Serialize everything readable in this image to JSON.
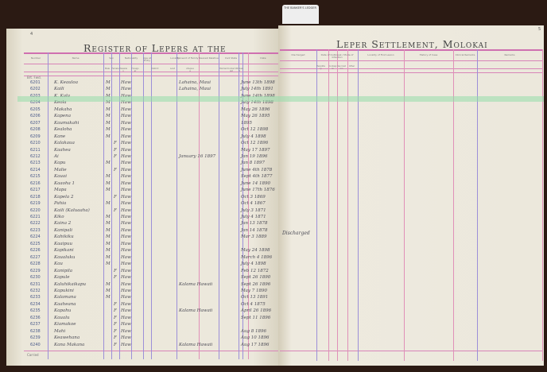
{
  "tag_label": "THE BANKER'S LEDGER",
  "left_page": {
    "page_number": "4",
    "title": "Register of Lepers at the",
    "headers": [
      "Number",
      "Name",
      "Sex",
      "Nationality",
      "Age at Entry",
      "Locality",
      "Consent of Family",
      "Nearest Relative",
      "Civil State",
      "Date"
    ],
    "sub_headers": [
      "Male",
      "Female",
      "Hawaiian",
      "Foreigner",
      "District",
      "Land",
      "Ahupuaa",
      "Married",
      "Unmarried",
      "Widowed"
    ],
    "brought_forward": "Brt. Fwd.",
    "carried_forward": "Carried"
  },
  "right_page": {
    "page_number": "5",
    "title": "Leper Settlement, Molokai",
    "headers": [
      "Discharged",
      "Date of Outbreak / Mode of Infection",
      "Locality of First Lesion",
      "History of Case",
      "Clinical Remarks",
      "Remarks"
    ],
    "sub_headers": [
      "Hereditary",
      "Contagion",
      "Vaccination",
      "Other"
    ],
    "annotation": "Discharged"
  },
  "rows": [
    {
      "num": "6201",
      "name": "K. Keauloa",
      "sex": "M",
      "nat": "Haw",
      "locality": "Lahaina, Maui",
      "date": "June 13th 1898"
    },
    {
      "num": "6202",
      "name": "Kaili",
      "sex": "M",
      "nat": "Haw",
      "locality": "Lahaina, Maui",
      "date": "July 14th 1891"
    },
    {
      "num": "6203",
      "name": "K. Kala",
      "sex": "M",
      "nat": "Haw",
      "locality": "",
      "date": "June 14th 1898"
    },
    {
      "num": "6204",
      "name": "Keola",
      "sex": "M",
      "nat": "Haw",
      "locality": "",
      "date": "July 14th 1898"
    },
    {
      "num": "6205",
      "name": "Makaha",
      "sex": "M",
      "nat": "Haw",
      "locality": "",
      "date": "May 26 1896"
    },
    {
      "num": "6206",
      "name": "Kapena",
      "sex": "M",
      "nat": "Haw",
      "locality": "",
      "date": "May 26 1895"
    },
    {
      "num": "6207",
      "name": "Kaumakahi",
      "sex": "M",
      "nat": "Haw",
      "locality": "",
      "date": "1895"
    },
    {
      "num": "6208",
      "name": "Kealoha",
      "sex": "M",
      "nat": "Haw",
      "locality": "",
      "date": "Oct 12 1898"
    },
    {
      "num": "6209",
      "name": "Kane",
      "sex": "M",
      "nat": "Haw",
      "locality": "",
      "date": "July 4 1898"
    },
    {
      "num": "6210",
      "name": "Kalakaua",
      "sex": "F",
      "nat": "Haw",
      "locality": "",
      "date": "Oct 12 1896"
    },
    {
      "num": "6211",
      "name": "Kaahea",
      "sex": "F",
      "nat": "Haw",
      "locality": "",
      "date": "May 17 1897"
    },
    {
      "num": "6212",
      "name": "Ai",
      "sex": "F",
      "nat": "Haw",
      "locality": "January 16 1897",
      "date": "Jan 19 1896"
    },
    {
      "num": "6213",
      "name": "Kapu",
      "sex": "M",
      "nat": "Haw",
      "locality": "",
      "date": "Jan 8 1897"
    },
    {
      "num": "6214",
      "name": "Malie",
      "sex": "F",
      "nat": "Haw",
      "locality": "",
      "date": "June 4th 1878"
    },
    {
      "num": "6215",
      "name": "Kauai",
      "sex": "M",
      "nat": "Haw",
      "locality": "",
      "date": "Sept 4th 1877"
    },
    {
      "num": "6216",
      "name": "Kaaoha 1",
      "sex": "M",
      "nat": "Haw",
      "locality": "",
      "date": "June 14 1890"
    },
    {
      "num": "6217",
      "name": "Mapa",
      "sex": "M",
      "nat": "Haw",
      "locality": "",
      "date": "June 17th 1876"
    },
    {
      "num": "6218",
      "name": "Kapela 2",
      "sex": "F",
      "nat": "Haw",
      "locality": "",
      "date": "Oct 3 1869"
    },
    {
      "num": "6219",
      "name": "Pahia",
      "sex": "M",
      "nat": "Haw",
      "locality": "",
      "date": "Oct 4 1867"
    },
    {
      "num": "6220",
      "name": "Kaili (Kaluaaha)",
      "sex": "F",
      "nat": "Haw",
      "locality": "",
      "date": "July 3 1871"
    },
    {
      "num": "6221",
      "name": "Kiko",
      "sex": "M",
      "nat": "Haw",
      "locality": "",
      "date": "July 4 1871"
    },
    {
      "num": "6222",
      "name": "Kaina 2",
      "sex": "M",
      "nat": "Haw",
      "locality": "",
      "date": "Jan 13 1878"
    },
    {
      "num": "6223",
      "name": "Kanipali",
      "sex": "M",
      "nat": "Haw",
      "locality": "",
      "date": "Jan 14 1878"
    },
    {
      "num": "6224",
      "name": "Kahikiku",
      "sex": "M",
      "nat": "Haw",
      "locality": "",
      "date": "Mar 3 1889"
    },
    {
      "num": "6225",
      "name": "Kaaipuu",
      "sex": "M",
      "nat": "Haw",
      "locality": "",
      "date": ""
    },
    {
      "num": "6226",
      "name": "Kapikani",
      "sex": "M",
      "nat": "Haw",
      "locality": "",
      "date": "May 24 1898"
    },
    {
      "num": "6227",
      "name": "Kaualuku",
      "sex": "M",
      "nat": "Haw",
      "locality": "",
      "date": "March 4 1896"
    },
    {
      "num": "6228",
      "name": "Kau",
      "sex": "M",
      "nat": "Haw",
      "locality": "",
      "date": "July 4 1898"
    },
    {
      "num": "6229",
      "name": "Kanipila",
      "sex": "F",
      "nat": "Haw",
      "locality": "",
      "date": "Feb 12 1872"
    },
    {
      "num": "6230",
      "name": "Kapule",
      "sex": "F",
      "nat": "Haw",
      "locality": "",
      "date": "Sept 26 1890"
    },
    {
      "num": "6231",
      "name": "Kaluhikaikapu",
      "sex": "M",
      "nat": "Haw",
      "locality": "Kalama Hawaii",
      "date": "Sept 26 1896"
    },
    {
      "num": "6232",
      "name": "Kapukini",
      "sex": "M",
      "nat": "Haw",
      "locality": "",
      "date": "May 7 1890"
    },
    {
      "num": "6233",
      "name": "Kalamana",
      "sex": "M",
      "nat": "Haw",
      "locality": "",
      "date": "Oct 13 1891"
    },
    {
      "num": "6234",
      "name": "Kaaheana",
      "sex": "F",
      "nat": "Haw",
      "locality": "",
      "date": "Oct 4 1875"
    },
    {
      "num": "6235",
      "name": "Kapahu",
      "sex": "F",
      "nat": "Haw",
      "locality": "Kalama Hawaii",
      "date": "April 26 1896"
    },
    {
      "num": "6236",
      "name": "Kaualu",
      "sex": "F",
      "nat": "Haw",
      "locality": "",
      "date": "Sept 11 1896"
    },
    {
      "num": "6237",
      "name": "Kiamakoe",
      "sex": "F",
      "nat": "Haw",
      "locality": "",
      "date": ""
    },
    {
      "num": "6238",
      "name": "Mahi",
      "sex": "F",
      "nat": "Haw",
      "locality": "",
      "date": "Aug 8 1896"
    },
    {
      "num": "6239",
      "name": "Keawehana",
      "sex": "F",
      "nat": "Haw",
      "locality": "",
      "date": "Aug 10 1896"
    },
    {
      "num": "6240",
      "name": "Kana Makana",
      "sex": "F",
      "nat": "Haw",
      "locality": "Kalama Hawaii",
      "date": "Aug 17 1896"
    }
  ],
  "colors": {
    "rule_pink": "#d884b8",
    "rule_purple": "#9c8fd8",
    "paper": "#e9e5d8",
    "highlight": "#96dcaa"
  }
}
